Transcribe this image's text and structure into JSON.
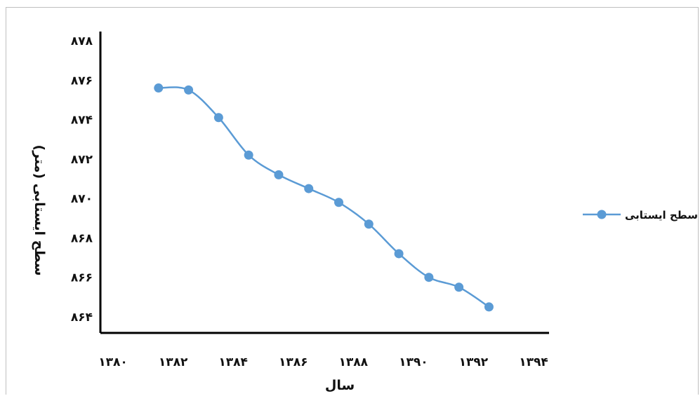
{
  "chart_data": {
    "type": "line",
    "xlabel": "سال",
    "ylabel": "سطح ایستابی (متر)",
    "xlim": [
      1380,
      1394
    ],
    "ylim": [
      864,
      878
    ],
    "xticks": [
      1380,
      1382,
      1384,
      1386,
      1388,
      1390,
      1392,
      1394
    ],
    "xtick_labels": [
      "۱۳۸۰",
      "۱۳۸۲",
      "۱۳۸۴",
      "۱۳۸۶",
      "۱۳۸۸",
      "۱۳۹۰",
      "۱۳۹۲",
      "۱۳۹۴"
    ],
    "yticks": [
      864,
      866,
      868,
      870,
      872,
      874,
      876,
      878
    ],
    "ytick_labels": [
      "۸۶۴",
      "۸۶۶",
      "۸۶۸",
      "۸۷۰",
      "۸۷۲",
      "۸۷۴",
      "۸۷۶",
      "۸۷۸"
    ],
    "grid": false,
    "legend": "right",
    "color": "#5b9bd5",
    "series": [
      {
        "name": "سطح ایستابی",
        "x": [
          1381,
          1382,
          1383,
          1384,
          1385,
          1386,
          1387,
          1388,
          1389,
          1390,
          1391,
          1392
        ],
        "y": [
          875.6,
          875.5,
          874.1,
          872.2,
          871.2,
          870.5,
          869.8,
          868.7,
          867.2,
          866.0,
          865.5,
          864.5
        ]
      }
    ]
  }
}
